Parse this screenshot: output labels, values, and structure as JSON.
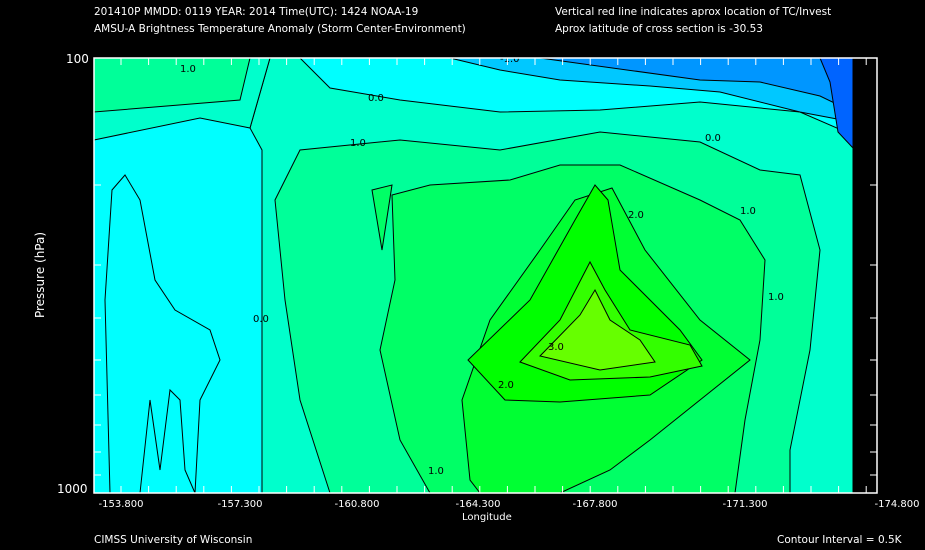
{
  "header": {
    "line1": "201410P  MMDD: 0119 YEAR: 2014 Time(UTC): 1424 NOAA-19",
    "line2": "AMSU-A Brightness Temperature Anomaly (Storm Center-Environment)",
    "right1": "Vertical red line indicates aprox location of TC/Invest",
    "right2": "Aprox latitude of cross section is -30.53"
  },
  "footer": {
    "left": "CIMSS University of Wisconsin",
    "right": "Contour Interval = 0.5K"
  },
  "chart_data": {
    "type": "heatmap",
    "subtype": "filled contour cross-section",
    "title": "AMSU-A Brightness Temperature Anomaly (Storm Center-Environment)",
    "xlabel": "Longitude",
    "ylabel": "Pressure (hPa)",
    "x_ticks": [
      "-153.800",
      "-157.300",
      "-160.800",
      "-164.300",
      "-167.800",
      "-171.300",
      "-174.800"
    ],
    "y_ticks": [
      "100",
      "1000"
    ],
    "ylim": [
      1000,
      100
    ],
    "y_scale": "log",
    "contour_interval": 0.5,
    "contour_labels": [
      "-1.0",
      "0.0",
      "0.0",
      "0.0",
      "1.0",
      "1.0",
      "1.0",
      "1.0",
      "1.0",
      "2.0",
      "2.0",
      "3.0"
    ],
    "levels": [
      {
        "min": -2.0,
        "color": "#0064ff"
      },
      {
        "min": -1.5,
        "color": "#0096ff"
      },
      {
        "min": -1.0,
        "color": "#00c8ff"
      },
      {
        "min": -0.5,
        "color": "#00ffff"
      },
      {
        "min": 0.0,
        "color": "#00ffcc"
      },
      {
        "min": 0.5,
        "color": "#00ff99"
      },
      {
        "min": 1.0,
        "color": "#00ff66"
      },
      {
        "min": 1.5,
        "color": "#00ff33"
      },
      {
        "min": 2.0,
        "color": "#00ff00"
      },
      {
        "min": 2.5,
        "color": "#33ff00"
      },
      {
        "min": 3.0,
        "color": "#66ff00"
      }
    ],
    "max_anomaly_approx": 3.2,
    "max_location": {
      "longitude": -167.0,
      "pressure_hPa": 400
    }
  }
}
